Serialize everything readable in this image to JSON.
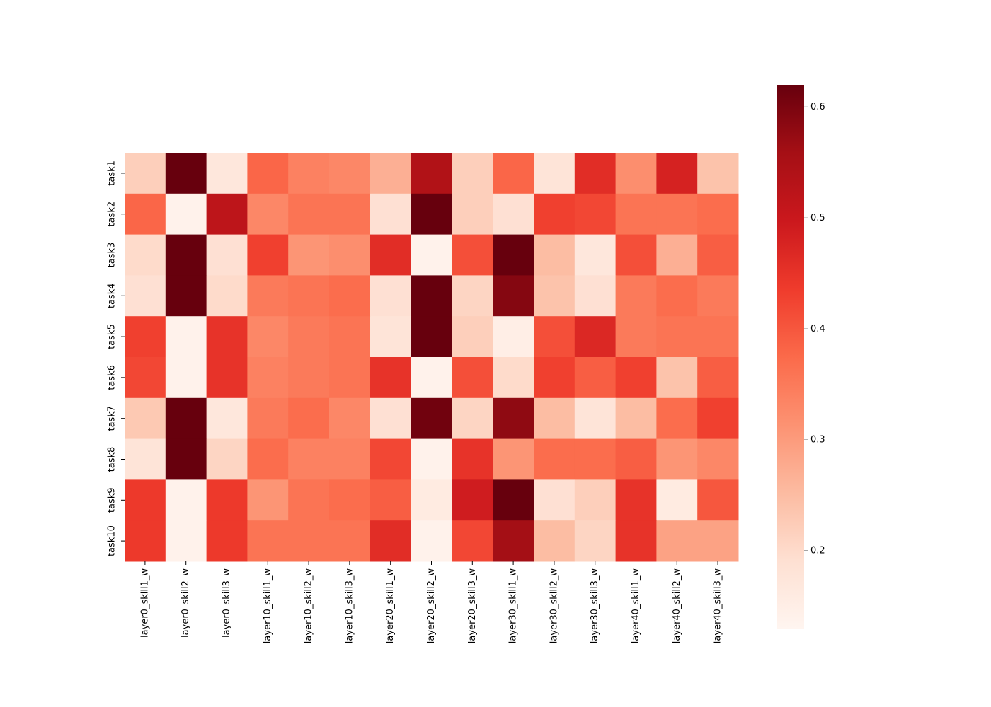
{
  "chart_data": {
    "type": "heatmap",
    "title": "",
    "xlabel": "",
    "ylabel": "",
    "x_categories": [
      "layer0_skill1_w",
      "layer0_skill2_w",
      "layer0_skill3_w",
      "layer10_skill1_w",
      "layer10_skill2_w",
      "layer10_skill3_w",
      "layer20_skill1_w",
      "layer20_skill2_w",
      "layer20_skill3_w",
      "layer30_skill1_w",
      "layer30_skill2_w",
      "layer30_skill3_w",
      "layer40_skill1_w",
      "layer40_skill2_w",
      "layer40_skill3_w"
    ],
    "y_categories": [
      "task1",
      "task2",
      "task3",
      "task4",
      "task5",
      "task6",
      "task7",
      "task8",
      "task9",
      "task10"
    ],
    "values": [
      [
        0.22,
        0.62,
        0.17,
        0.38,
        0.34,
        0.33,
        0.27,
        0.54,
        0.22,
        0.38,
        0.18,
        0.46,
        0.32,
        0.48,
        0.24
      ],
      [
        0.38,
        0.14,
        0.52,
        0.33,
        0.36,
        0.36,
        0.19,
        0.62,
        0.22,
        0.19,
        0.43,
        0.42,
        0.36,
        0.36,
        0.37
      ],
      [
        0.2,
        0.62,
        0.19,
        0.43,
        0.31,
        0.32,
        0.46,
        0.14,
        0.41,
        0.62,
        0.25,
        0.17,
        0.41,
        0.27,
        0.39
      ],
      [
        0.19,
        0.62,
        0.2,
        0.35,
        0.36,
        0.37,
        0.19,
        0.62,
        0.21,
        0.59,
        0.24,
        0.19,
        0.35,
        0.37,
        0.35
      ],
      [
        0.43,
        0.14,
        0.45,
        0.33,
        0.35,
        0.36,
        0.18,
        0.62,
        0.22,
        0.15,
        0.41,
        0.47,
        0.35,
        0.36,
        0.36
      ],
      [
        0.42,
        0.14,
        0.45,
        0.34,
        0.35,
        0.36,
        0.45,
        0.14,
        0.41,
        0.2,
        0.43,
        0.39,
        0.43,
        0.24,
        0.39
      ],
      [
        0.23,
        0.62,
        0.17,
        0.35,
        0.37,
        0.33,
        0.19,
        0.61,
        0.21,
        0.58,
        0.25,
        0.18,
        0.25,
        0.37,
        0.43
      ],
      [
        0.18,
        0.62,
        0.21,
        0.37,
        0.34,
        0.34,
        0.42,
        0.14,
        0.45,
        0.31,
        0.37,
        0.37,
        0.39,
        0.31,
        0.33
      ],
      [
        0.44,
        0.14,
        0.44,
        0.31,
        0.36,
        0.37,
        0.39,
        0.16,
        0.49,
        0.62,
        0.19,
        0.22,
        0.45,
        0.16,
        0.4
      ],
      [
        0.44,
        0.14,
        0.44,
        0.36,
        0.36,
        0.36,
        0.46,
        0.14,
        0.42,
        0.56,
        0.25,
        0.21,
        0.45,
        0.29,
        0.29
      ]
    ],
    "colorbar": {
      "vmin": 0.13,
      "vmax": 0.62,
      "ticks": [
        0.2,
        0.3,
        0.4,
        0.5,
        0.6
      ],
      "tick_labels": [
        "0.2",
        "0.3",
        "0.4",
        "0.5",
        "0.6"
      ]
    },
    "colormap": "Reds",
    "colormap_stops": [
      "#fff5f0",
      "#fee0d2",
      "#fcbba1",
      "#fc9272",
      "#fb6a4a",
      "#ef3b2c",
      "#cb181d",
      "#a50f15",
      "#67000d"
    ]
  }
}
